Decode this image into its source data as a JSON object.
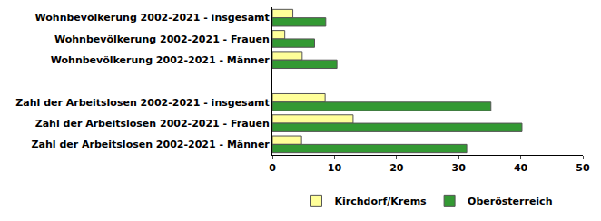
{
  "chart_data": {
    "type": "bar",
    "orientation": "horizontal",
    "categories": [
      "Wohnbevölkerung 2002-2021 - insgesamt",
      "Wohnbevölkerung 2002-2021 - Frauen",
      "Wohnbevölkerung 2002-2021 - Männer",
      null,
      "Zahl der Arbeitslosen 2002-2021 - insgesamt",
      "Zahl der Arbeitslosen 2002-2021 - Frauen",
      "Zahl der Arbeitslosen 2002-2021 - Männer"
    ],
    "series": [
      {
        "name": "Kirchdorf/Krems",
        "color": "#ffff99",
        "values": [
          3.3,
          2.0,
          4.8,
          null,
          8.5,
          13.0,
          4.7
        ]
      },
      {
        "name": "Oberösterreich",
        "color": "#339933",
        "values": [
          8.6,
          6.8,
          10.4,
          null,
          35.2,
          40.2,
          31.3
        ]
      }
    ],
    "xlim": [
      0,
      50
    ],
    "xticks": [
      0,
      10,
      20,
      30,
      40,
      50
    ],
    "grid": false,
    "legend": "bottom"
  }
}
